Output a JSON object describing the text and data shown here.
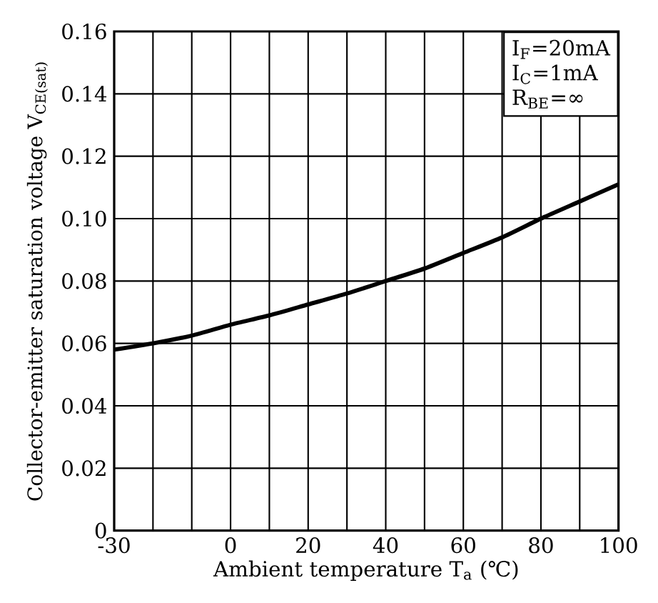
{
  "chart_data": {
    "type": "line",
    "xlabel": "Ambient temperature T$_{a}$ (℃)",
    "ylabel": "Collector-emitter saturation voltage V$_{CE(sat)}$",
    "x": [
      -30,
      -20,
      -10,
      0,
      10,
      20,
      30,
      40,
      50,
      60,
      70,
      80,
      90,
      100
    ],
    "series": [
      {
        "color": "#000000",
        "values": [
          0.058,
          0.06,
          0.0625,
          0.066,
          0.069,
          0.0725,
          0.076,
          0.08,
          0.084,
          0.089,
          0.094,
          0.1,
          0.1055,
          0.111
        ]
      }
    ],
    "xlim": [
      -30,
      100
    ],
    "xticks": [
      -30,
      {
        "value": -20,
        "label": null
      },
      {
        "value": -10,
        "label": null
      },
      0,
      {
        "value": 10,
        "label": null
      },
      20,
      {
        "value": 30,
        "label": null
      },
      40,
      {
        "value": 50,
        "label": null
      },
      60,
      {
        "value": 70,
        "label": null
      },
      80,
      {
        "value": 90,
        "label": null
      },
      100
    ],
    "ylim": [
      0,
      0.16
    ],
    "yticks": [
      0,
      0.02,
      0.04,
      0.06,
      0.08,
      {
        "value": 0.1,
        "label": "0.10"
      },
      0.12,
      0.14,
      0.16
    ],
    "annotations": [
      "I$_{F}$=20mA",
      "I$_{C}$=1mA",
      "R$_{BE}$=∞"
    ],
    "grid": true,
    "marker": "none",
    "line_style": "solid"
  }
}
